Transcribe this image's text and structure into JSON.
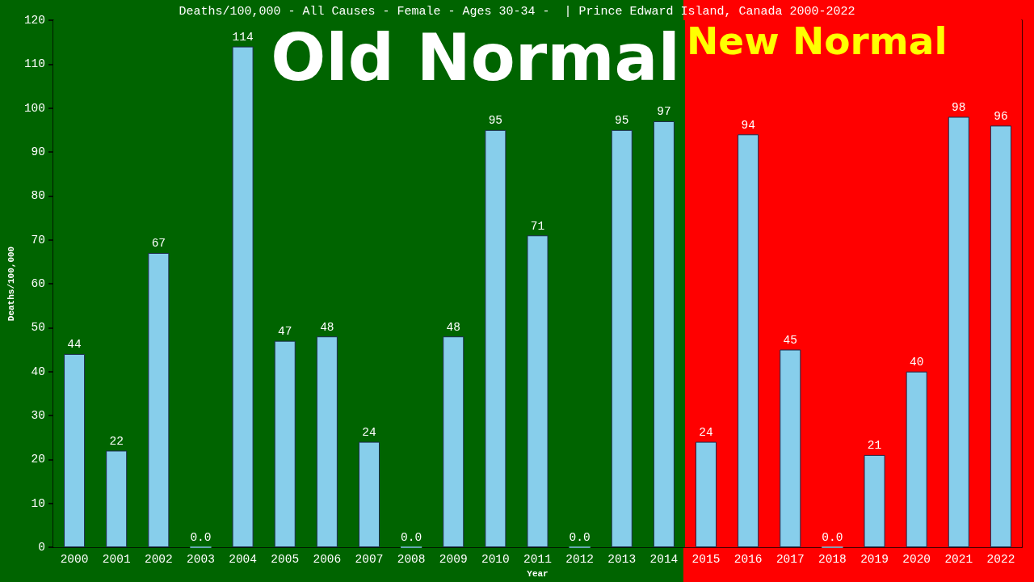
{
  "chart_data": {
    "type": "bar",
    "title": "Deaths/100,000 - All Causes - Female - Ages 30-34 -  | Prince Edward Island, Canada 2000-2022",
    "xlabel": "Year",
    "ylabel": "Deaths/100,000",
    "categories": [
      "2000",
      "2001",
      "2002",
      "2003",
      "2004",
      "2005",
      "2006",
      "2007",
      "2008",
      "2009",
      "2010",
      "2011",
      "2012",
      "2013",
      "2014",
      "2015",
      "2016",
      "2017",
      "2018",
      "2019",
      "2020",
      "2021",
      "2022"
    ],
    "values": [
      44,
      22,
      67,
      0,
      114,
      47,
      48,
      24,
      0,
      48,
      95,
      71,
      0,
      95,
      97,
      24,
      94,
      45,
      0,
      21,
      40,
      98,
      96
    ],
    "value_labels": [
      "44",
      "22",
      "67",
      "0.0",
      "114",
      "47",
      "48",
      "24",
      "0.0",
      "48",
      "95",
      "71",
      "0.0",
      "95",
      "97",
      "24",
      "94",
      "45",
      "0.0",
      "21",
      "40",
      "98",
      "96"
    ],
    "color": "#87ceeb",
    "ylim": [
      0,
      120
    ],
    "yticks": [
      0,
      10,
      20,
      30,
      40,
      50,
      60,
      70,
      80,
      90,
      100,
      110,
      120
    ],
    "grid": false,
    "bands": [
      {
        "axis": "x",
        "from": "2000",
        "to": "2014",
        "label": "Old Normal",
        "color": "#006400"
      },
      {
        "axis": "x",
        "from": "2015",
        "to": "2022",
        "label": "New Normal",
        "color": "#ff0000"
      }
    ]
  }
}
